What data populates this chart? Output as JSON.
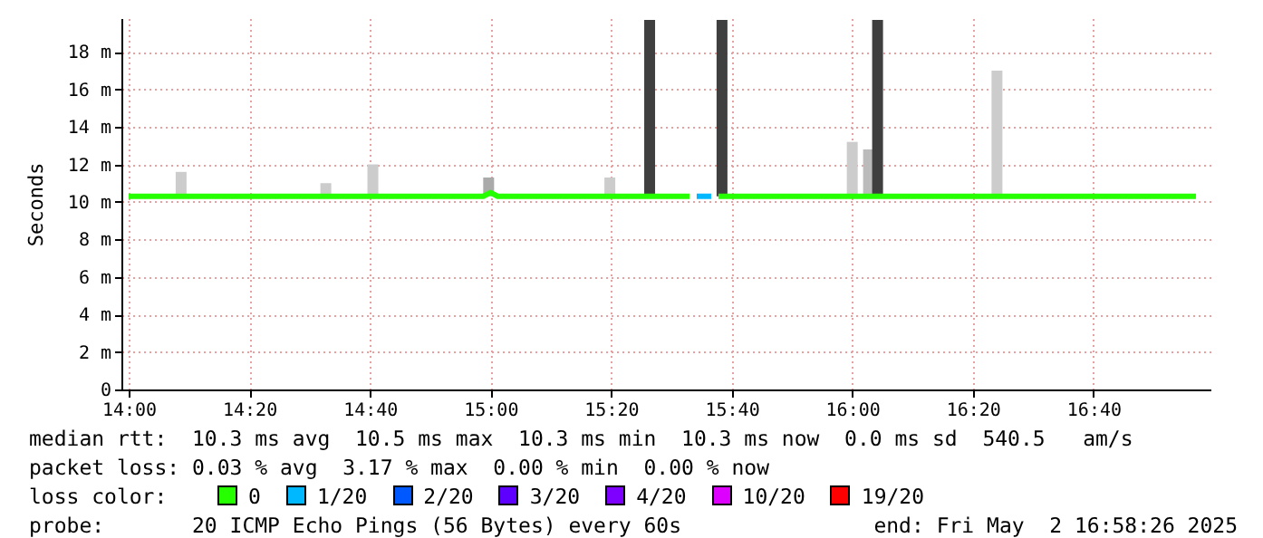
{
  "chart_data": {
    "type": "line",
    "ylabel": "Seconds",
    "legend_title": "loss color:",
    "legend": "bottom",
    "grid": true,
    "xlim": [
      13.98,
      16.99
    ],
    "xticks": [
      {
        "value": 14,
        "label": "14:00"
      },
      {
        "value": 14.3333,
        "label": "14:20"
      },
      {
        "value": 14.6667,
        "label": "14:40"
      },
      {
        "value": 15,
        "label": "15:00"
      },
      {
        "value": 15.3333,
        "label": "15:20"
      },
      {
        "value": 15.6667,
        "label": "15:40"
      },
      {
        "value": 16,
        "label": "16:00"
      },
      {
        "value": 16.3333,
        "label": "16:20"
      },
      {
        "value": 16.6667,
        "label": "16:40"
      }
    ],
    "ylim": [
      0,
      19.8
    ],
    "yticks": [
      0,
      {
        "value": 2,
        "label": "2 m"
      },
      {
        "value": 4,
        "label": "4 m"
      },
      {
        "value": 6,
        "label": "6 m"
      },
      {
        "value": 8,
        "label": "8 m"
      },
      {
        "value": 10,
        "label": "10 m"
      },
      {
        "value": 12,
        "label": "12 m"
      },
      {
        "value": 14,
        "label": "14 m"
      },
      {
        "value": 16,
        "label": "16 m"
      },
      {
        "value": 18,
        "label": "18 m"
      }
    ],
    "series": [
      {
        "type": "bar",
        "x": [
          14.145,
          14.545,
          14.675,
          14.995,
          15.33,
          15.44,
          15.64,
          16.0,
          16.045,
          16.07,
          16.4
        ],
        "base": [
          10.3,
          10.3,
          10.3,
          10.3,
          10.3,
          10.3,
          10.3,
          10.3,
          10.3,
          10.3,
          10.3
        ],
        "values": [
          1.3,
          0.7,
          1.7,
          1.0,
          1.0,
          9.4,
          9.4,
          2.9,
          2.5,
          9.4,
          6.7
        ],
        "colors": [
          "#cccccc",
          "#cccccc",
          "#cccccc",
          "#aaaaaa",
          "#cccccc",
          "#3f3f3f",
          "#3f3f3f",
          "#cccccc",
          "#bbbbbb",
          "#3f3f3f",
          "#cccccc"
        ]
      },
      {
        "name": "0",
        "color": "#26ff00",
        "x": [
          14.0,
          14.15,
          14.3,
          14.45,
          14.6,
          14.75,
          14.9,
          14.98,
          15.0,
          15.02,
          15.15,
          15.3,
          15.45,
          15.55,
          15.59,
          15.63,
          15.75,
          15.9,
          16.05,
          16.2,
          16.35,
          16.5,
          16.65,
          16.8,
          16.95
        ],
        "values": [
          10.3,
          10.3,
          10.3,
          10.3,
          10.3,
          10.3,
          10.3,
          10.3,
          10.5,
          10.3,
          10.3,
          10.3,
          10.3,
          10.3,
          null,
          10.3,
          10.3,
          10.3,
          10.3,
          10.3,
          10.3,
          10.3,
          10.3,
          10.3,
          10.3
        ]
      },
      {
        "name": "1/20",
        "color": "#00b8ff",
        "x": [
          15.57,
          15.61
        ],
        "values": [
          10.3,
          10.3
        ]
      },
      {
        "name": "2/20",
        "color": "#0059ff"
      },
      {
        "name": "3/20",
        "color": "#5e00ff"
      },
      {
        "name": "4/20",
        "color": "#7e00ff"
      },
      {
        "name": "10/20",
        "color": "#dd00ff"
      },
      {
        "name": "19/20",
        "color": "#ff0000"
      }
    ],
    "annotations": [
      "median rtt:  10.3 ms avg  10.5 ms max  10.3 ms min  10.3 ms now  0.0 ms sd  540.5   am/s",
      "packet loss: 0.03 % avg  3.17 % max  0.00 % min  0.00 % now",
      "probe:       20 ICMP Echo Pings (56 Bytes) every 60s",
      "end: Fri May  2 16:58:26 2025"
    ]
  }
}
